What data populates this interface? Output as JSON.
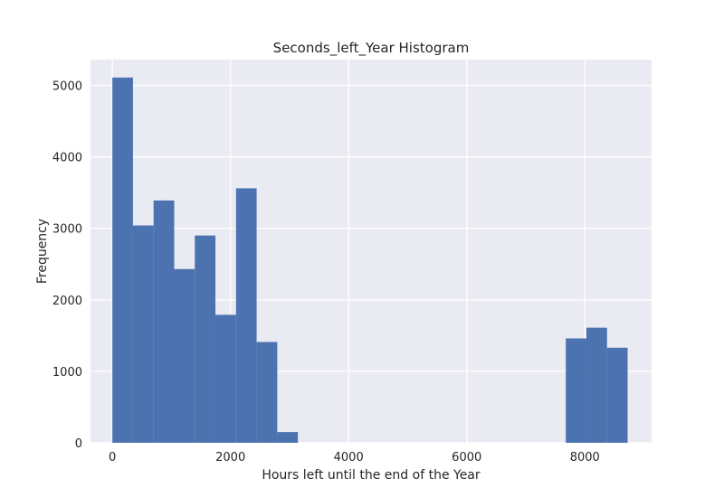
{
  "chart_data": {
    "type": "bar",
    "title": "Seconds_left_Year Histogram",
    "xlabel": "Hours left until the end of the Year",
    "ylabel": "Frequency",
    "xlim": [
      -370,
      9130
    ],
    "ylim": [
      0,
      5360
    ],
    "grid": true,
    "xticks": [
      0,
      2000,
      4000,
      6000,
      8000
    ],
    "yticks": [
      0,
      1000,
      2000,
      3000,
      4000,
      5000
    ],
    "bar_color": "#4c72b0",
    "background_color": "#eaeaf2",
    "bins": [
      {
        "x0": 0,
        "x1": 349,
        "value": 5110
      },
      {
        "x0": 349,
        "x1": 698,
        "value": 3040
      },
      {
        "x0": 698,
        "x1": 1047,
        "value": 3390
      },
      {
        "x0": 1047,
        "x1": 1396,
        "value": 2430
      },
      {
        "x0": 1396,
        "x1": 1745,
        "value": 2900
      },
      {
        "x0": 1745,
        "x1": 2094,
        "value": 1790
      },
      {
        "x0": 2094,
        "x1": 2443,
        "value": 3560
      },
      {
        "x0": 2443,
        "x1": 2792,
        "value": 1410
      },
      {
        "x0": 2792,
        "x1": 3141,
        "value": 150
      },
      {
        "x0": 7677,
        "x1": 8026,
        "value": 1460
      },
      {
        "x0": 8026,
        "x1": 8375,
        "value": 1610
      },
      {
        "x0": 8375,
        "x1": 8724,
        "value": 1330
      }
    ]
  }
}
